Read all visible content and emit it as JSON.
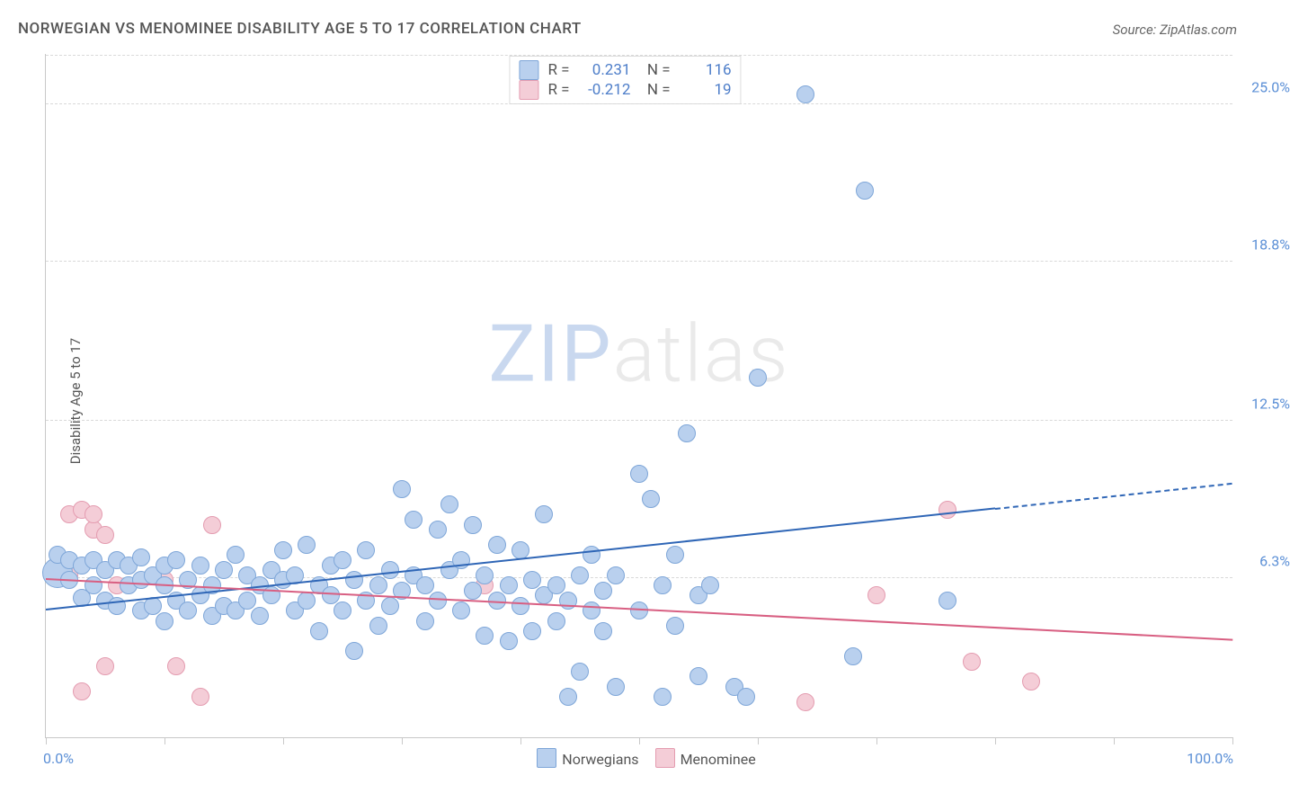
{
  "title": "NORWEGIAN VS MENOMINEE DISABILITY AGE 5 TO 17 CORRELATION CHART",
  "source": "Source: ZipAtlas.com",
  "ylabel": "Disability Age 5 to 17",
  "watermark_a": "ZIP",
  "watermark_b": "atlas",
  "chart": {
    "type": "scatter",
    "xlim": [
      0,
      100
    ],
    "ylim": [
      0,
      27
    ],
    "xlabels": {
      "min": "0.0%",
      "max": "100.0%"
    },
    "yticks": [
      {
        "v": 6.3,
        "l": "6.3%"
      },
      {
        "v": 12.5,
        "l": "12.5%"
      },
      {
        "v": 18.8,
        "l": "18.8%"
      },
      {
        "v": 25.0,
        "l": "25.0%"
      }
    ],
    "xticks": [
      0,
      10,
      20,
      30,
      40,
      50,
      60,
      70,
      80,
      90,
      100
    ],
    "grid_color": "#d9d9d9",
    "series": [
      {
        "name": "Norwegians",
        "key": "norwegians",
        "fill": "#b9d0ee",
        "stroke": "#7ea6d8",
        "r": 9,
        "reg": {
          "x1": 0,
          "y1": 5.0,
          "x2": 80,
          "y2": 9.0,
          "dash_to": 100,
          "dash_y": 10.0,
          "color": "#2f66b6"
        },
        "corr": {
          "R": "0.231",
          "N": "116"
        },
        "points": [
          [
            1,
            6.5,
            16
          ],
          [
            1,
            7.2
          ],
          [
            2,
            6.2
          ],
          [
            2,
            7.0
          ],
          [
            3,
            5.5
          ],
          [
            3,
            6.8
          ],
          [
            4,
            6.0
          ],
          [
            4,
            7.0
          ],
          [
            5,
            5.4
          ],
          [
            5,
            6.6
          ],
          [
            6,
            5.2
          ],
          [
            6,
            7.0
          ],
          [
            7,
            6.0
          ],
          [
            7,
            6.8
          ],
          [
            8,
            5.0
          ],
          [
            8,
            6.2
          ],
          [
            8,
            7.1
          ],
          [
            9,
            5.2
          ],
          [
            9,
            6.4
          ],
          [
            10,
            4.6
          ],
          [
            10,
            6.0
          ],
          [
            10,
            6.8
          ],
          [
            11,
            5.4
          ],
          [
            11,
            7.0
          ],
          [
            12,
            5.0
          ],
          [
            12,
            6.2
          ],
          [
            13,
            5.6
          ],
          [
            13,
            6.8
          ],
          [
            14,
            4.8
          ],
          [
            14,
            6.0
          ],
          [
            15,
            5.2
          ],
          [
            15,
            6.6
          ],
          [
            16,
            5.0
          ],
          [
            16,
            7.2
          ],
          [
            17,
            5.4
          ],
          [
            17,
            6.4
          ],
          [
            18,
            4.8
          ],
          [
            18,
            6.0
          ],
          [
            19,
            6.6
          ],
          [
            19,
            5.6
          ],
          [
            20,
            6.2
          ],
          [
            20,
            7.4
          ],
          [
            21,
            5.0
          ],
          [
            21,
            6.4
          ],
          [
            22,
            5.4
          ],
          [
            22,
            7.6
          ],
          [
            23,
            6.0
          ],
          [
            23,
            4.2
          ],
          [
            24,
            6.8
          ],
          [
            24,
            5.6
          ],
          [
            25,
            7.0
          ],
          [
            25,
            5.0
          ],
          [
            26,
            3.4
          ],
          [
            26,
            6.2
          ],
          [
            27,
            5.4
          ],
          [
            27,
            7.4
          ],
          [
            28,
            6.0
          ],
          [
            28,
            4.4
          ],
          [
            29,
            6.6
          ],
          [
            29,
            5.2
          ],
          [
            30,
            9.8
          ],
          [
            30,
            5.8
          ],
          [
            31,
            6.4
          ],
          [
            31,
            8.6
          ],
          [
            32,
            4.6
          ],
          [
            32,
            6.0
          ],
          [
            33,
            8.2
          ],
          [
            33,
            5.4
          ],
          [
            34,
            9.2
          ],
          [
            34,
            6.6
          ],
          [
            35,
            5.0
          ],
          [
            35,
            7.0
          ],
          [
            36,
            8.4
          ],
          [
            36,
            5.8
          ],
          [
            37,
            6.4
          ],
          [
            37,
            4.0
          ],
          [
            38,
            7.6
          ],
          [
            38,
            5.4
          ],
          [
            39,
            6.0
          ],
          [
            39,
            3.8
          ],
          [
            40,
            5.2
          ],
          [
            40,
            7.4
          ],
          [
            41,
            6.2
          ],
          [
            41,
            4.2
          ],
          [
            42,
            5.6
          ],
          [
            42,
            8.8
          ],
          [
            43,
            6.0
          ],
          [
            43,
            4.6
          ],
          [
            44,
            1.6
          ],
          [
            44,
            5.4
          ],
          [
            45,
            6.4
          ],
          [
            45,
            2.6
          ],
          [
            46,
            5.0
          ],
          [
            46,
            7.2
          ],
          [
            47,
            5.8
          ],
          [
            47,
            4.2
          ],
          [
            48,
            6.4
          ],
          [
            48,
            2.0
          ],
          [
            50,
            10.4
          ],
          [
            50,
            5.0
          ],
          [
            51,
            9.4
          ],
          [
            52,
            6.0
          ],
          [
            52,
            1.6
          ],
          [
            53,
            4.4
          ],
          [
            53,
            7.2
          ],
          [
            54,
            12.0
          ],
          [
            55,
            5.6
          ],
          [
            55,
            2.4
          ],
          [
            56,
            6.0
          ],
          [
            58,
            2.0
          ],
          [
            59,
            1.6
          ],
          [
            60,
            14.2
          ],
          [
            64,
            25.4
          ],
          [
            68,
            3.2
          ],
          [
            69,
            21.6
          ],
          [
            76,
            5.4
          ]
        ]
      },
      {
        "name": "Menominee",
        "key": "menominee",
        "fill": "#f4cdd7",
        "stroke": "#e49cb0",
        "r": 9,
        "reg": {
          "x1": 0,
          "y1": 6.2,
          "x2": 100,
          "y2": 3.8,
          "color": "#d85f82"
        },
        "corr": {
          "R": "-0.212",
          "N": "19"
        },
        "points": [
          [
            2,
            8.8
          ],
          [
            2,
            6.4
          ],
          [
            3,
            9.0
          ],
          [
            3,
            1.8
          ],
          [
            4,
            8.2
          ],
          [
            4,
            8.8
          ],
          [
            5,
            8.0
          ],
          [
            5,
            2.8
          ],
          [
            6,
            6.0
          ],
          [
            10,
            6.2
          ],
          [
            11,
            2.8
          ],
          [
            13,
            1.6
          ],
          [
            14,
            8.4
          ],
          [
            37,
            6.0
          ],
          [
            64,
            1.4
          ],
          [
            70,
            5.6
          ],
          [
            76,
            9.0
          ],
          [
            78,
            3.0
          ],
          [
            83,
            2.2
          ]
        ]
      }
    ]
  },
  "legend": [
    {
      "label": "Norwegians",
      "fill": "#b9d0ee",
      "stroke": "#7ea6d8"
    },
    {
      "label": "Menominee",
      "fill": "#f4cdd7",
      "stroke": "#e49cb0"
    }
  ]
}
